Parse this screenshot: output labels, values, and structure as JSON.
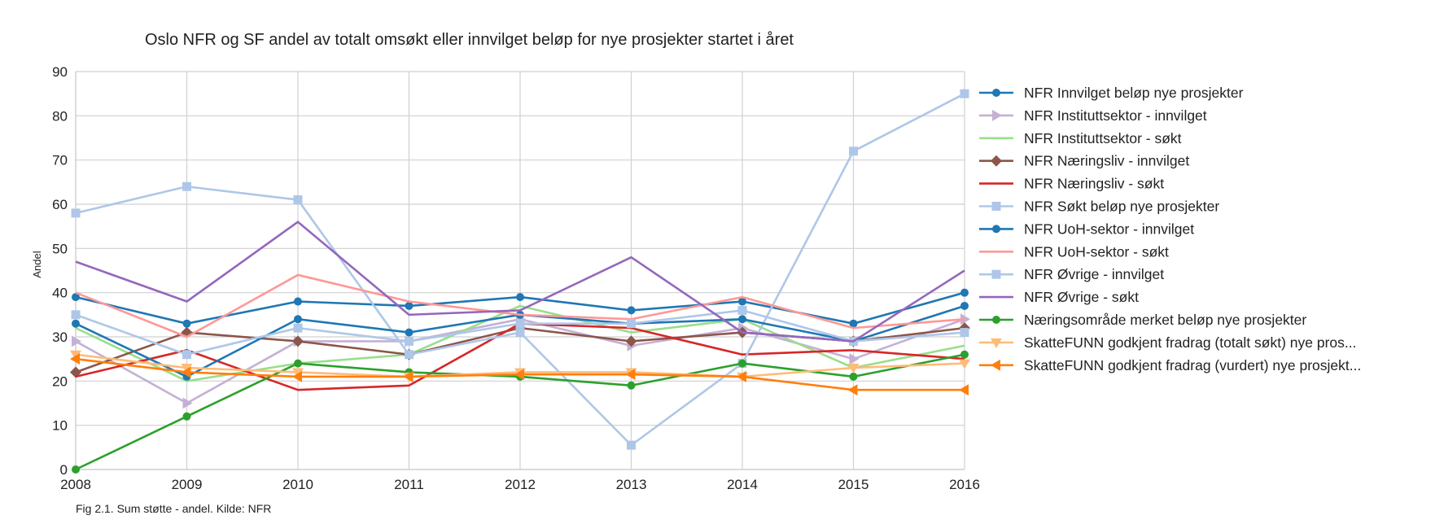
{
  "chart_data": {
    "type": "line",
    "title": "Oslo NFR og SF andel av totalt omsøkt eller innvilget beløp for nye prosjekter startet i året",
    "xlabel": "",
    "ylabel": "Andel",
    "caption": "Fig 2.1. Sum støtte - andel. Kilde: NFR",
    "xlim": [
      2008,
      2016
    ],
    "ylim": [
      0,
      90
    ],
    "x": [
      2008,
      2009,
      2010,
      2011,
      2012,
      2013,
      2014,
      2015,
      2016
    ],
    "x_ticks": [
      "2008",
      "2009",
      "2010",
      "2011",
      "2012",
      "2013",
      "2014",
      "2015",
      "2016"
    ],
    "y_ticks": [
      "0",
      "10",
      "20",
      "30",
      "40",
      "50",
      "60",
      "70",
      "80",
      "90"
    ],
    "grid": true,
    "legend_position": "right",
    "series": [
      {
        "name": "NFR Innvilget beløp nye prosjekter",
        "color": "#1f77b4",
        "marker": "circle",
        "values": [
          39,
          33,
          38,
          37,
          39,
          36,
          38,
          33,
          40
        ]
      },
      {
        "name": "NFR Instituttsektor - innvilget",
        "color": "#c5b0d5",
        "marker": "triangle-right",
        "values": [
          29,
          15,
          29,
          29,
          34,
          28,
          32,
          25,
          34
        ]
      },
      {
        "name": "NFR Instituttsektor - søkt",
        "color": "#98df8a",
        "marker": "none",
        "values": [
          32,
          20,
          24,
          26,
          37,
          31,
          34,
          23,
          28
        ]
      },
      {
        "name": "NFR Næringsliv - innvilget",
        "color": "#8c564b",
        "marker": "diamond",
        "values": [
          22,
          31,
          29,
          26,
          32,
          29,
          31,
          29,
          32
        ]
      },
      {
        "name": "NFR Næringsliv - søkt",
        "color": "#d62728",
        "marker": "none",
        "values": [
          21,
          27,
          18,
          19,
          33,
          32,
          26,
          27,
          25
        ]
      },
      {
        "name": "NFR Søkt beløp nye prosjekter",
        "color": "#aec7e8",
        "marker": "square",
        "values": [
          58,
          64,
          61,
          26,
          31,
          5.5,
          24,
          72,
          85
        ]
      },
      {
        "name": "NFR UoH-sektor - innvilget",
        "color": "#1f77b4",
        "marker": "circle",
        "values": [
          33,
          21,
          34,
          31,
          35,
          33,
          34,
          29,
          37
        ]
      },
      {
        "name": "NFR UoH-sektor - søkt",
        "color": "#ff9896",
        "marker": "none",
        "values": [
          40,
          30,
          44,
          38,
          35,
          34,
          39,
          32,
          34
        ]
      },
      {
        "name": "NFR Øvrige - innvilget",
        "color": "#aec7e8",
        "marker": "square",
        "values": [
          35,
          26,
          32,
          29,
          33,
          33,
          36,
          29,
          31
        ]
      },
      {
        "name": "NFR Øvrige - søkt",
        "color": "#9467bd",
        "marker": "none",
        "values": [
          47,
          38,
          56,
          35,
          36,
          48,
          31,
          29,
          45
        ]
      },
      {
        "name": "Næringsområde merket beløp nye prosjekter",
        "color": "#2ca02c",
        "marker": "circle",
        "values": [
          0,
          12,
          24,
          22,
          21,
          19,
          24,
          21,
          26
        ]
      },
      {
        "name": "SkatteFUNN godkjent fradrag (totalt søkt) nye pros...",
        "color": "#ffbb78",
        "marker": "triangle-down",
        "values": [
          26,
          23,
          22,
          21,
          22,
          22,
          21,
          23,
          24
        ]
      },
      {
        "name": "SkatteFUNN godkjent fradrag (vurdert) nye prosjekt...",
        "color": "#ff7f0e",
        "marker": "triangle-left",
        "values": [
          25,
          22,
          21,
          21,
          21.5,
          21.5,
          21,
          18,
          18
        ]
      }
    ]
  }
}
